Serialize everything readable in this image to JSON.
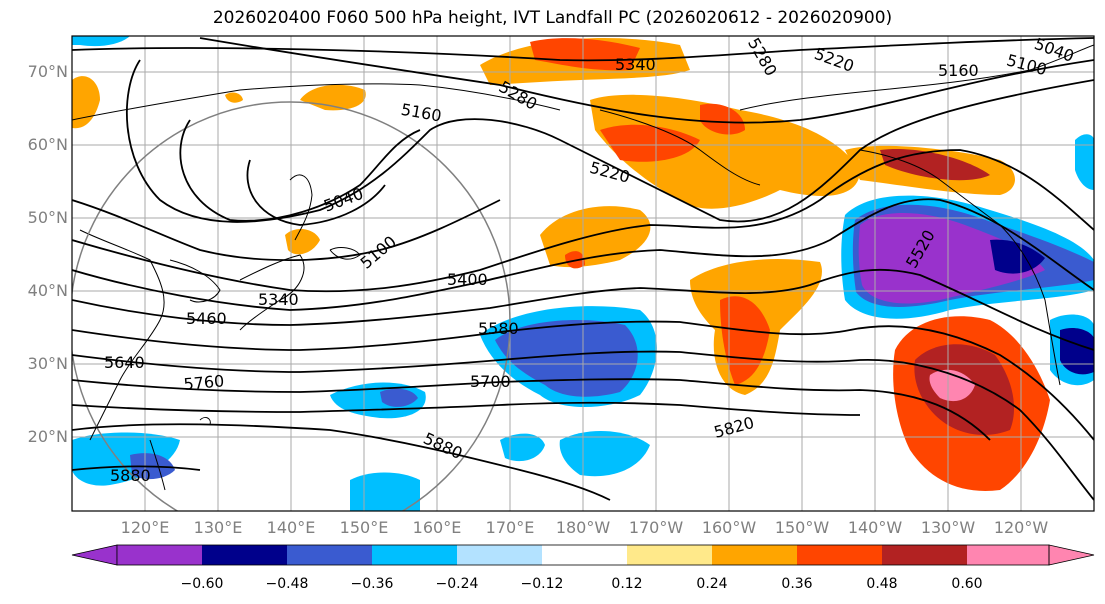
{
  "title": "2026020400 F060 500 hPa height, IVT Landfall PC (2026020612 - 2026020900)",
  "lat_labels": [
    "70°N",
    "60°N",
    "50°N",
    "40°N",
    "30°N",
    "20°N"
  ],
  "lon_labels": [
    "120°E",
    "130°E",
    "140°E",
    "150°E",
    "160°E",
    "170°E",
    "180°W",
    "170°W",
    "160°W",
    "150°W",
    "140°W",
    "130°W",
    "120°W"
  ],
  "contour_labels": [
    "5340",
    "5280",
    "5220",
    "5160",
    "5100",
    "5040",
    "5160",
    "5280",
    "5220",
    "5040",
    "5100",
    "5340",
    "5460",
    "5400",
    "5580",
    "5640",
    "5760",
    "5700",
    "5820",
    "5880",
    "5880",
    "5520"
  ],
  "colorbar": {
    "ticks": [
      "−0.60",
      "−0.48",
      "−0.36",
      "−0.24",
      "−0.12",
      "0.12",
      "0.24",
      "0.36",
      "0.48",
      "0.60"
    ],
    "colors": [
      "#9932CC",
      "#00008B",
      "#3A5BD0",
      "#00BFFF",
      "#B3E2FF",
      "#FFFFFF",
      "#FFE98A",
      "#FFA500",
      "#FF4500",
      "#B22222",
      "#FF85B0"
    ]
  },
  "map": {
    "extent_lon": [
      "110°E",
      "110°W"
    ],
    "extent_lat": [
      "10°N",
      "75°N"
    ],
    "grid": true
  }
}
